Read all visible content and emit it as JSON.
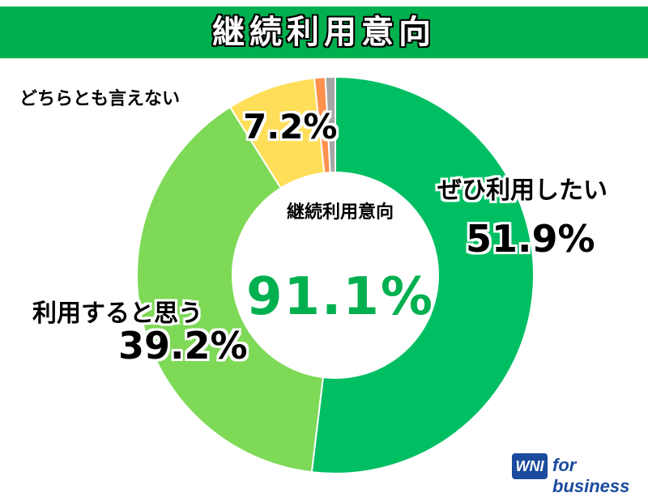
{
  "header": {
    "title": "継続利用意向"
  },
  "center": {
    "label": "継続利用意向",
    "value": "91.1%"
  },
  "colors": {
    "title_bar": "#00b04f",
    "center_value": "#00b04f"
  },
  "chart_data": {
    "type": "pie",
    "donut": true,
    "slices": [
      {
        "label": "ぜひ利用したい",
        "value": 51.9,
        "value_label": "51.9%",
        "color": "#00bf63"
      },
      {
        "label": "利用すると思う",
        "value": 39.2,
        "value_label": "39.2%",
        "color": "#7ed957"
      },
      {
        "label": "どちらとも言えない",
        "value": 7.2,
        "value_label": "7.2%",
        "color": "#ffde59"
      },
      {
        "label": "",
        "value": 0.9,
        "value_label": "",
        "color": "#ff914d"
      },
      {
        "label": "",
        "value": 0.8,
        "value_label": "",
        "color": "#a6a6a6"
      }
    ]
  },
  "logo": {
    "mark": "WNI",
    "text": "for business"
  }
}
